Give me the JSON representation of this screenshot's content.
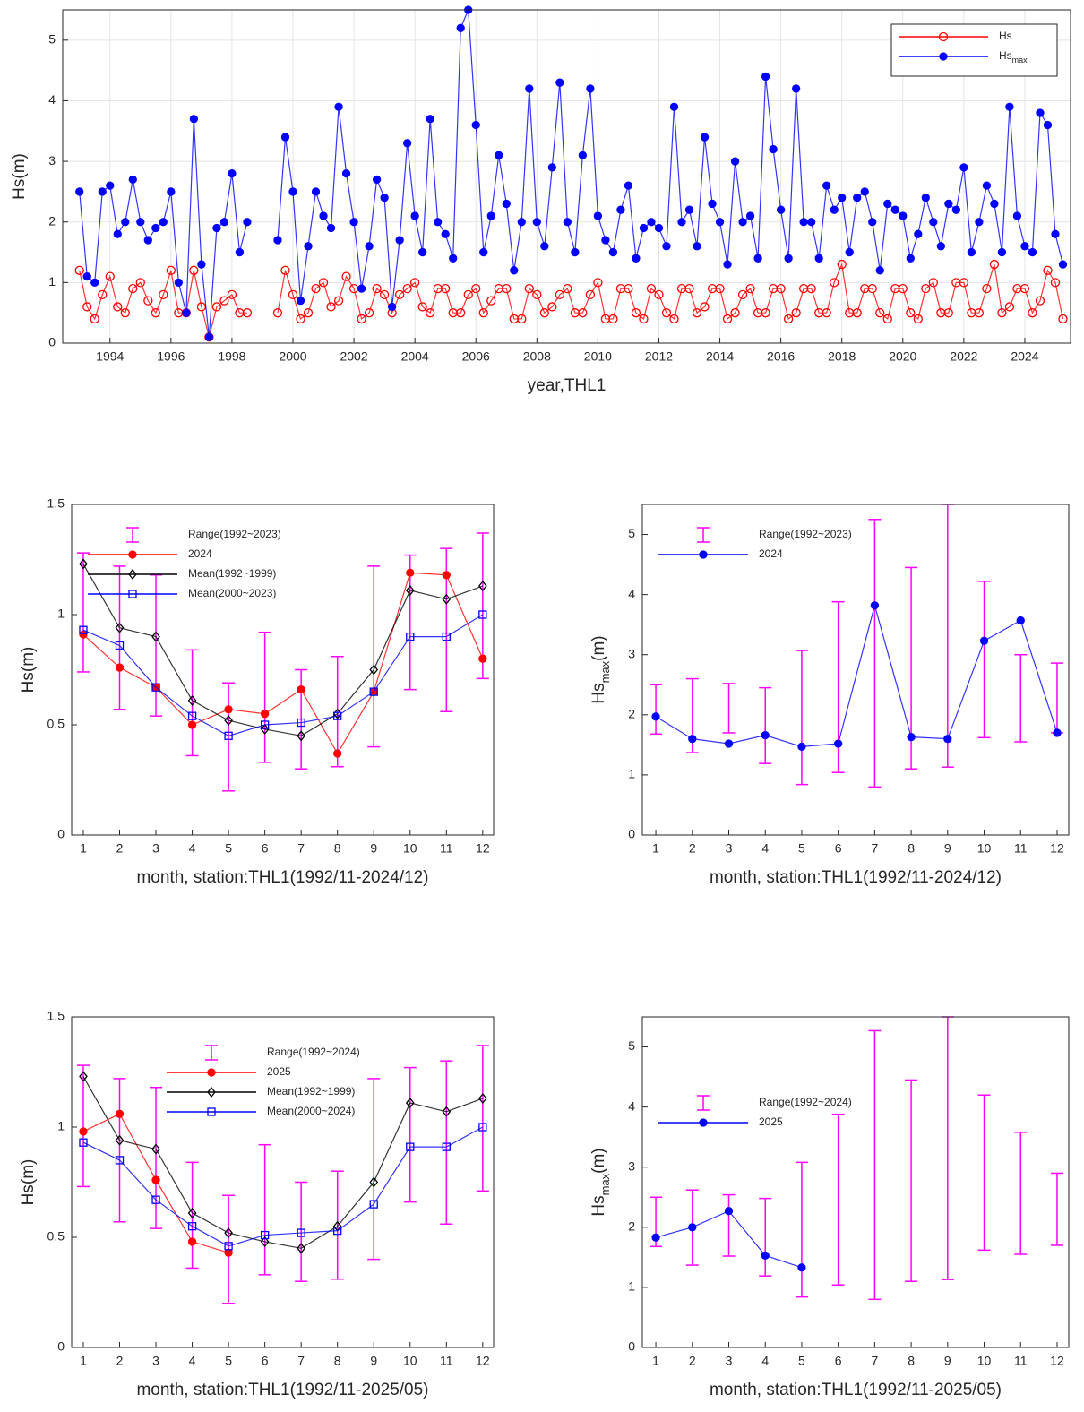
{
  "chart_data": [
    {
      "type": "line",
      "grid": true,
      "legend": "upper right",
      "legend_box": true,
      "xlabel": "year,THL1",
      "ylabel": "Hs(m)",
      "xlim": [
        1992.45,
        2025.5
      ],
      "ylim": [
        0,
        5.5
      ],
      "xticks": [
        1994,
        1996,
        1998,
        2000,
        2002,
        2004,
        2006,
        2008,
        2010,
        2012,
        2014,
        2016,
        2018,
        2020,
        2022,
        2024
      ],
      "yticks": [
        0,
        1,
        2,
        3,
        4,
        5
      ],
      "x": [
        1993,
        1993.25,
        1993.5,
        1993.75,
        1994,
        1994.25,
        1994.5,
        1994.75,
        1995,
        1995.25,
        1995.5,
        1995.75,
        1996,
        1996.25,
        1996.5,
        1996.75,
        1997,
        1997.25,
        1997.5,
        1997.75,
        1998,
        1998.25,
        1998.5,
        1998.75,
        1999,
        1999.25,
        1999.5,
        1999.75,
        2000,
        2000.25,
        2000.5,
        2000.75,
        2001,
        2001.25,
        2001.5,
        2001.75,
        2002,
        2002.25,
        2002.5,
        2002.75,
        2003,
        2003.25,
        2003.5,
        2003.75,
        2004,
        2004.25,
        2004.5,
        2004.75,
        2005,
        2005.25,
        2005.5,
        2005.75,
        2006,
        2006.25,
        2006.5,
        2006.75,
        2007,
        2007.25,
        2007.5,
        2007.75,
        2008,
        2008.25,
        2008.5,
        2008.75,
        2009,
        2009.25,
        2009.5,
        2009.75,
        2010,
        2010.25,
        2010.5,
        2010.75,
        2011,
        2011.25,
        2011.5,
        2011.75,
        2012,
        2012.25,
        2012.5,
        2012.75,
        2013,
        2013.25,
        2013.5,
        2013.75,
        2014,
        2014.25,
        2014.5,
        2014.75,
        2015,
        2015.25,
        2015.5,
        2015.75,
        2016,
        2016.25,
        2016.5,
        2016.75,
        2017,
        2017.25,
        2017.5,
        2017.75,
        2018,
        2018.25,
        2018.5,
        2018.75,
        2019,
        2019.25,
        2019.5,
        2019.75,
        2020,
        2020.25,
        2020.5,
        2020.75,
        2021,
        2021.25,
        2021.5,
        2021.75,
        2022,
        2022.25,
        2022.5,
        2022.75,
        2023,
        2023.25,
        2023.5,
        2023.75,
        2024,
        2024.25,
        2024.5,
        2024.75,
        2025,
        2025.25
      ],
      "series": [
        {
          "name": "Hs",
          "color": "#ff0000",
          "marker": "circle",
          "values": [
            1.2,
            0.6,
            0.4,
            0.8,
            1.1,
            0.6,
            0.5,
            0.9,
            1.0,
            0.7,
            0.5,
            0.8,
            1.2,
            0.5,
            0.5,
            1.2,
            0.6,
            0.1,
            0.6,
            0.7,
            0.8,
            0.5,
            0.5,
            null,
            null,
            null,
            0.5,
            1.2,
            0.8,
            0.4,
            0.5,
            0.9,
            1.0,
            0.6,
            0.7,
            1.1,
            0.9,
            0.4,
            0.5,
            0.9,
            0.8,
            0.5,
            0.8,
            0.9,
            1.0,
            0.6,
            0.5,
            0.9,
            0.9,
            0.5,
            0.5,
            0.8,
            0.9,
            0.5,
            0.7,
            0.9,
            0.9,
            0.4,
            0.4,
            0.9,
            0.8,
            0.5,
            0.6,
            0.8,
            0.9,
            0.5,
            0.5,
            0.8,
            1.0,
            0.4,
            0.4,
            0.9,
            0.9,
            0.5,
            0.4,
            0.9,
            0.8,
            0.5,
            0.4,
            0.9,
            0.9,
            0.5,
            0.6,
            0.9,
            0.9,
            0.4,
            0.5,
            0.8,
            0.9,
            0.5,
            0.5,
            0.9,
            0.9,
            0.4,
            0.5,
            0.9,
            0.9,
            0.5,
            0.5,
            1.0,
            1.3,
            0.5,
            0.5,
            0.9,
            0.9,
            0.5,
            0.4,
            0.9,
            0.9,
            0.5,
            0.4,
            0.9,
            1.0,
            0.5,
            0.5,
            1.0,
            1.0,
            0.5,
            0.5,
            0.9,
            1.3,
            0.5,
            0.6,
            0.9,
            0.9,
            0.5,
            0.7,
            1.2,
            1.0,
            0.4
          ]
        },
        {
          "name": "Hs",
          "name_sub": "max",
          "color": "#0000ff",
          "marker": "dot",
          "values": [
            2.5,
            1.1,
            1.0,
            2.5,
            2.6,
            1.8,
            2.0,
            2.7,
            2.0,
            1.7,
            1.9,
            2.0,
            2.5,
            1.0,
            0.5,
            3.7,
            1.3,
            0.1,
            1.9,
            2.0,
            2.8,
            1.5,
            2.0,
            null,
            null,
            null,
            1.7,
            3.4,
            2.5,
            0.7,
            1.6,
            2.5,
            2.1,
            1.9,
            3.9,
            2.8,
            2.0,
            0.9,
            1.6,
            2.7,
            2.4,
            0.6,
            1.7,
            3.3,
            2.1,
            1.5,
            3.7,
            2.0,
            1.8,
            1.4,
            5.2,
            5.5,
            3.6,
            1.5,
            2.1,
            3.1,
            2.3,
            1.2,
            2.0,
            4.2,
            2.0,
            1.6,
            2.9,
            4.3,
            2.0,
            1.5,
            3.1,
            4.2,
            2.1,
            1.7,
            1.5,
            2.2,
            2.6,
            1.4,
            1.9,
            2.0,
            1.9,
            1.6,
            3.9,
            2.0,
            2.2,
            1.6,
            3.4,
            2.3,
            2.0,
            1.3,
            3.0,
            2.0,
            2.1,
            1.4,
            4.4,
            3.2,
            2.2,
            1.4,
            4.2,
            2.0,
            2.0,
            1.4,
            2.6,
            2.2,
            2.4,
            1.5,
            2.4,
            2.5,
            2.0,
            1.2,
            2.3,
            2.2,
            2.1,
            1.4,
            1.8,
            2.4,
            2.0,
            1.6,
            2.3,
            2.2,
            2.9,
            1.5,
            2.0,
            2.6,
            2.3,
            1.5,
            3.9,
            2.1,
            1.6,
            1.5,
            3.8,
            3.6,
            1.8,
            1.3
          ]
        }
      ]
    },
    {
      "type": "line",
      "grid": false,
      "legend": "upper left",
      "legend_box": false,
      "xlabel": "month, station:THL1(1992/11-2024/12)",
      "ylabel": "Hs(m)",
      "xlim": [
        0.68,
        12.3
      ],
      "ylim": [
        0,
        1.5
      ],
      "xticks": [
        1,
        2,
        3,
        4,
        5,
        6,
        7,
        8,
        9,
        10,
        11,
        12
      ],
      "yticks": [
        0,
        0.5,
        1,
        1.5
      ],
      "x": [
        1,
        2,
        3,
        4,
        5,
        6,
        7,
        8,
        9,
        10,
        11,
        12
      ],
      "series": [
        {
          "name": "Range(1992~2023)",
          "color": "#ff00ff",
          "marker": "range",
          "low": [
            0.74,
            0.57,
            0.54,
            0.36,
            0.2,
            0.33,
            0.3,
            0.31,
            0.4,
            0.66,
            0.56,
            0.71
          ],
          "high": [
            1.28,
            1.22,
            1.18,
            0.84,
            0.69,
            0.92,
            0.75,
            0.81,
            1.22,
            1.27,
            1.3,
            1.37
          ]
        },
        {
          "name": "2024",
          "color": "#ff0000",
          "marker": "dot",
          "values": [
            0.91,
            0.76,
            0.67,
            0.5,
            0.57,
            0.55,
            0.66,
            0.37,
            0.65,
            1.19,
            1.18,
            0.8
          ]
        },
        {
          "name": "Mean(1992~1999)",
          "color": "#000000",
          "marker": "diamond",
          "values": [
            1.23,
            0.94,
            0.9,
            0.61,
            0.52,
            0.48,
            0.45,
            0.55,
            0.75,
            1.11,
            1.07,
            1.13
          ]
        },
        {
          "name": "Mean(2000~2023)",
          "color": "#0000ff",
          "marker": "square",
          "values": [
            0.93,
            0.86,
            0.67,
            0.54,
            0.45,
            0.5,
            0.51,
            0.54,
            0.65,
            0.9,
            0.9,
            1.0
          ]
        }
      ]
    },
    {
      "type": "line",
      "grid": false,
      "legend": "upper left",
      "legend_box": false,
      "xlabel": "month, station:THL1(1992/11-2024/12)",
      "ylabel": {
        "base": "Hs",
        "sub": "max",
        "unit": "(m)"
      },
      "xlim": [
        0.63,
        12.32
      ],
      "ylim": [
        0,
        5.5
      ],
      "xticks": [
        1,
        2,
        3,
        4,
        5,
        6,
        7,
        8,
        9,
        10,
        11,
        12
      ],
      "yticks": [
        0,
        1,
        2,
        3,
        4,
        5
      ],
      "x": [
        1,
        2,
        3,
        4,
        5,
        6,
        7,
        8,
        9,
        10,
        11,
        12
      ],
      "series": [
        {
          "name": "Range(1992~2023)",
          "color": "#ff00ff",
          "marker": "range",
          "low": [
            1.68,
            1.37,
            1.7,
            1.19,
            0.84,
            1.04,
            0.8,
            1.1,
            1.13,
            1.62,
            1.55,
            1.7
          ],
          "high": [
            2.5,
            2.6,
            2.52,
            2.45,
            3.07,
            3.88,
            5.25,
            4.45,
            5.5,
            4.22,
            3.0,
            2.86
          ]
        },
        {
          "name": "2024",
          "color": "#0000ff",
          "marker": "dot",
          "values": [
            1.97,
            1.6,
            1.52,
            1.66,
            1.47,
            1.52,
            3.82,
            1.63,
            1.6,
            3.23,
            3.57,
            1.7
          ]
        }
      ]
    },
    {
      "type": "line",
      "grid": false,
      "legend": "upper center",
      "legend_box": false,
      "xlabel": "month, station:THL1(1992/11-2025/05)",
      "ylabel": "Hs(m)",
      "xlim": [
        0.68,
        12.3
      ],
      "ylim": [
        0,
        1.5
      ],
      "xticks": [
        1,
        2,
        3,
        4,
        5,
        6,
        7,
        8,
        9,
        10,
        11,
        12
      ],
      "yticks": [
        0,
        0.5,
        1,
        1.5
      ],
      "x": [
        1,
        2,
        3,
        4,
        5,
        6,
        7,
        8,
        9,
        10,
        11,
        12
      ],
      "series": [
        {
          "name": "Range(1992~2024)",
          "color": "#ff00ff",
          "marker": "range",
          "low": [
            0.73,
            0.57,
            0.54,
            0.36,
            0.2,
            0.33,
            0.3,
            0.31,
            0.4,
            0.66,
            0.56,
            0.71
          ],
          "high": [
            1.28,
            1.22,
            1.18,
            0.84,
            0.69,
            0.92,
            0.75,
            0.8,
            1.22,
            1.27,
            1.3,
            1.37
          ]
        },
        {
          "name": "2025",
          "color": "#ff0000",
          "marker": "dot",
          "values": [
            0.98,
            1.06,
            0.76,
            0.48,
            0.43,
            null,
            null,
            null,
            null,
            null,
            null,
            null
          ]
        },
        {
          "name": "Mean(1992~1999)",
          "color": "#000000",
          "marker": "diamond",
          "values": [
            1.23,
            0.94,
            0.9,
            0.61,
            0.52,
            0.48,
            0.45,
            0.55,
            0.75,
            1.11,
            1.07,
            1.13
          ]
        },
        {
          "name": "Mean(2000~2024)",
          "color": "#0000ff",
          "marker": "square",
          "values": [
            0.93,
            0.85,
            0.67,
            0.55,
            0.46,
            0.51,
            0.52,
            0.53,
            0.65,
            0.91,
            0.91,
            1.0
          ]
        }
      ]
    },
    {
      "type": "line",
      "grid": false,
      "legend": "center left",
      "legend_box": false,
      "xlabel": "month, station:THL1(1992/11-2025/05)",
      "ylabel": {
        "base": "Hs",
        "sub": "max",
        "unit": "(m)"
      },
      "xlim": [
        0.63,
        12.32
      ],
      "ylim": [
        0,
        5.5
      ],
      "xticks": [
        1,
        2,
        3,
        4,
        5,
        6,
        7,
        8,
        9,
        10,
        11,
        12
      ],
      "yticks": [
        0,
        1,
        2,
        3,
        4,
        5
      ],
      "x": [
        1,
        2,
        3,
        4,
        5,
        6,
        7,
        8,
        9,
        10,
        11,
        12
      ],
      "series": [
        {
          "name": "Range(1992~2024)",
          "color": "#ff00ff",
          "marker": "range",
          "low": [
            1.68,
            1.37,
            1.52,
            1.19,
            0.84,
            1.04,
            0.8,
            1.1,
            1.13,
            1.62,
            1.55,
            1.7
          ],
          "high": [
            2.5,
            2.62,
            2.54,
            2.48,
            3.08,
            3.88,
            5.27,
            4.45,
            5.5,
            4.2,
            3.58,
            2.9
          ]
        },
        {
          "name": "2025",
          "color": "#0000ff",
          "marker": "dot",
          "values": [
            1.83,
            2.0,
            2.27,
            1.53,
            1.33,
            null,
            null,
            null,
            null,
            null,
            null,
            null
          ]
        }
      ]
    }
  ]
}
